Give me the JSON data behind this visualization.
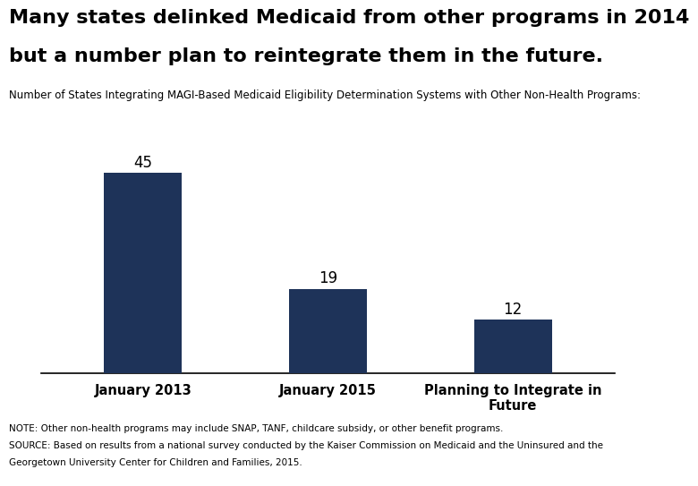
{
  "title_line1": "Many states delinked Medicaid from other programs in 2014",
  "title_line2": "but a number plan to reintegrate them in the future.",
  "subtitle": "Number of States Integrating MAGI-Based Medicaid Eligibility Determination Systems with Other Non-Health Programs:",
  "categories": [
    "January 2013",
    "January 2015",
    "Planning to Integrate in\nFuture"
  ],
  "values": [
    45,
    19,
    12
  ],
  "bar_color": "#1e3359",
  "note_line1": "NOTE: Other non-health programs may include SNAP, TANF, childcare subsidy, or other benefit programs.",
  "note_line2": "SOURCE: Based on results from a national survey conducted by the Kaiser Commission on Medicaid and the Uninsured and the",
  "note_line3": "Georgetown University Center for Children and Families, 2015.",
  "background_color": "#ffffff",
  "ylim": [
    0,
    50
  ],
  "value_fontsize": 12,
  "title_fontsize": 16,
  "subtitle_fontsize": 8.5,
  "note_fontsize": 7.5,
  "tick_fontsize": 10.5,
  "bar_width": 0.42
}
